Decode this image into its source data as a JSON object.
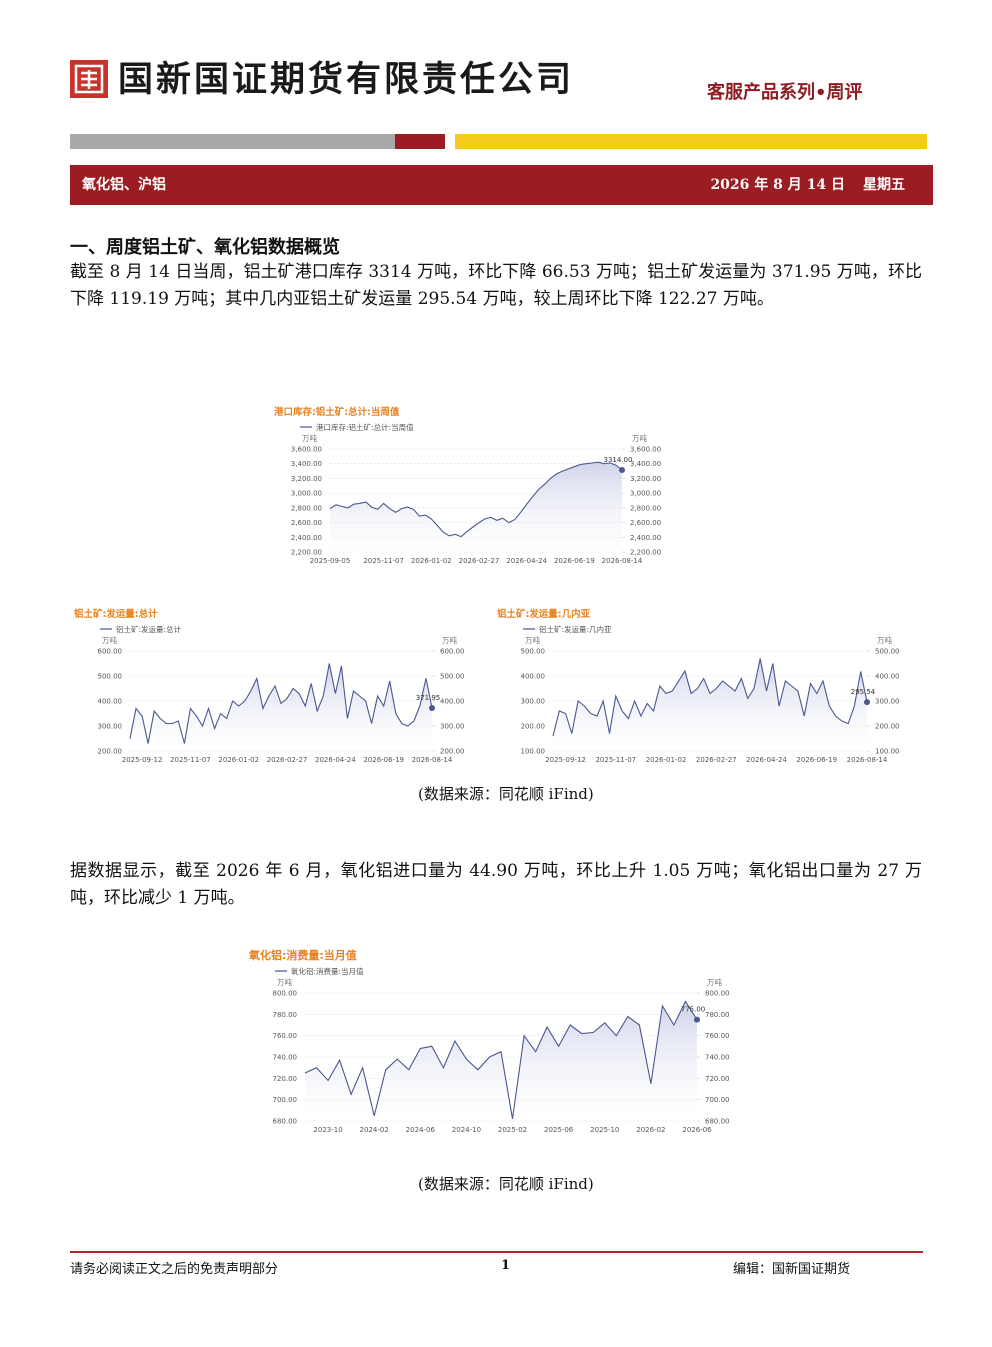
{
  "header": {
    "company": "国新国证期货有限责任公司",
    "series": "客服产品系列•周评"
  },
  "banner": {
    "topic": "氧化铝、沪铝",
    "date": "2026 年 8 月 14 日",
    "weekday": "星期五"
  },
  "section": {
    "heading": "一、周度铝土矿、氧化铝数据概览",
    "paragraphs": [
      "截至 8 月 14 日当周，铝土矿港口库存 3314 万吨，环比下降 66.53 万吨；铝土矿发运量为 371.95 万吨，环比下降 119.19 万吨；其中几内亚铝土矿发运量 295.54 万吨，较上周环比下降 122.27 万吨。",
      "据数据显示，截至 2026 年 6 月，氧化铝进口量为 44.90 万吨，环比上升 1.05 万吨；氧化铝出口量为 27 万吨，环比减少 1 万吨。"
    ],
    "sources": [
      "(数据来源：同花顺 iFind)",
      "(数据来源：同花顺 iFind)"
    ]
  },
  "footer": {
    "disclaimer": "请务必阅读正文之后的免责声明部分",
    "page": "1",
    "editor": "编辑：国新国证期货"
  },
  "chart_data": [
    {
      "type": "line",
      "title": "港口库存:铝土矿:总计:当周值",
      "y_unit": "万吨",
      "y2_unit": "万吨",
      "categories": [
        "2025-09-05",
        null,
        null,
        null,
        null,
        null,
        null,
        null,
        null,
        "2025-11-07",
        null,
        null,
        null,
        null,
        null,
        null,
        null,
        "2026-01-02",
        null,
        null,
        null,
        null,
        null,
        null,
        null,
        "2026-02-27",
        null,
        null,
        null,
        null,
        null,
        null,
        null,
        "2026-04-24",
        null,
        null,
        null,
        null,
        null,
        null,
        null,
        "2026-06-19",
        null,
        null,
        null,
        null,
        null,
        null,
        null,
        "2026-08-14"
      ],
      "series": [
        {
          "name": "港口库存:铝土矿:总计:当周值",
          "color": "#4a5790",
          "values": [
            2790,
            2840,
            2820,
            2800,
            2850,
            2860,
            2880,
            2810,
            2780,
            2860,
            2790,
            2740,
            2790,
            2810,
            2780,
            2690,
            2700,
            2650,
            2560,
            2470,
            2420,
            2440,
            2410,
            2480,
            2540,
            2600,
            2650,
            2670,
            2630,
            2660,
            2600,
            2640,
            2740,
            2850,
            2950,
            3050,
            3120,
            3200,
            3260,
            3300,
            3330,
            3360,
            3390,
            3400,
            3410,
            3420,
            3400,
            3410,
            3380,
            3314
          ],
          "value_labels": [
            null,
            null,
            null,
            null,
            null,
            null,
            null,
            null,
            null,
            null,
            null,
            null,
            null,
            null,
            null,
            null,
            null,
            null,
            null,
            null,
            null,
            null,
            null,
            null,
            null,
            null,
            null,
            null,
            null,
            null,
            null,
            null,
            null,
            null,
            null,
            null,
            null,
            null,
            null,
            null,
            null,
            null,
            null,
            null,
            null,
            null,
            null,
            null,
            null,
            "3314.00"
          ]
        }
      ],
      "ylim": [
        2200,
        3600
      ],
      "yticks": [
        {
          "value": 2200,
          "label": "2,200.00"
        },
        {
          "value": 2400,
          "label": "2,400.00"
        },
        {
          "value": 2600,
          "label": "2,600.00"
        },
        {
          "value": 2800,
          "label": "2,800.00"
        },
        {
          "value": 3000,
          "label": "3,000.00"
        },
        {
          "value": 3200,
          "label": "3,200.00"
        },
        {
          "value": 3400,
          "label": "3,400.00"
        },
        {
          "value": 3600,
          "label": "3,600.00"
        }
      ],
      "y2lim": [
        2200,
        3600
      ],
      "y2ticks": [
        {
          "value": 2200,
          "label": "2,200.00"
        },
        {
          "value": 2400,
          "label": "2,400.00"
        },
        {
          "value": 2600,
          "label": "2,600.00"
        },
        {
          "value": 2800,
          "label": "2,800.00"
        },
        {
          "value": 3000,
          "label": "3,000.00"
        },
        {
          "value": 3200,
          "label": "3,200.00"
        },
        {
          "value": 3400,
          "label": "3,400.00"
        },
        {
          "value": 3600,
          "label": "3,600.00"
        }
      ],
      "grid": true
    },
    {
      "type": "line",
      "title": "铝土矿:发运量:总计",
      "y_unit": "万吨",
      "y2_unit": "万吨",
      "categories": [
        null,
        null,
        "2025-09-12",
        null,
        null,
        null,
        null,
        null,
        null,
        null,
        "2025-11-07",
        null,
        null,
        null,
        null,
        null,
        null,
        null,
        "2026-01-02",
        null,
        null,
        null,
        null,
        null,
        null,
        null,
        "2026-02-27",
        null,
        null,
        null,
        null,
        null,
        null,
        null,
        "2026-04-24",
        null,
        null,
        null,
        null,
        null,
        null,
        null,
        "2026-06-19",
        null,
        null,
        null,
        null,
        null,
        null,
        null,
        "2026-08-14"
      ],
      "series": [
        {
          "name": "铝土矿:发运量:总计",
          "color": "#4a5790",
          "values": [
            250,
            370,
            340,
            230,
            360,
            330,
            310,
            310,
            320,
            230,
            370,
            340,
            300,
            370,
            290,
            350,
            330,
            400,
            380,
            400,
            440,
            490,
            370,
            420,
            460,
            390,
            410,
            450,
            430,
            380,
            470,
            360,
            420,
            550,
            430,
            540,
            330,
            440,
            420,
            400,
            310,
            420,
            380,
            480,
            350,
            310,
            300,
            320,
            380,
            491,
            371.95
          ],
          "value_labels": [
            null,
            null,
            null,
            null,
            null,
            null,
            null,
            null,
            null,
            null,
            null,
            null,
            null,
            null,
            null,
            null,
            null,
            null,
            null,
            null,
            null,
            null,
            null,
            null,
            null,
            null,
            null,
            null,
            null,
            null,
            null,
            null,
            null,
            null,
            null,
            null,
            null,
            null,
            null,
            null,
            null,
            null,
            null,
            null,
            null,
            null,
            null,
            null,
            null,
            null,
            "371.95"
          ]
        }
      ],
      "ylim": [
        200,
        600
      ],
      "yticks": [
        {
          "value": 200,
          "label": "200.00"
        },
        {
          "value": 300,
          "label": "300.00"
        },
        {
          "value": 400,
          "label": "400.00"
        },
        {
          "value": 500,
          "label": "500.00"
        },
        {
          "value": 600,
          "label": "600.00"
        }
      ],
      "y2lim": [
        200,
        600
      ],
      "y2ticks": [
        {
          "value": 200,
          "label": "200.00"
        },
        {
          "value": 300,
          "label": "300.00"
        },
        {
          "value": 400,
          "label": "400.00"
        },
        {
          "value": 500,
          "label": "500.00"
        },
        {
          "value": 600,
          "label": "600.00"
        }
      ],
      "grid": true
    },
    {
      "type": "line",
      "title": "铝土矿:发运量:几内亚",
      "y_unit": "万吨",
      "y2_unit": "万吨",
      "categories": [
        null,
        null,
        "2025-09-12",
        null,
        null,
        null,
        null,
        null,
        null,
        null,
        "2025-11-07",
        null,
        null,
        null,
        null,
        null,
        null,
        null,
        "2026-01-02",
        null,
        null,
        null,
        null,
        null,
        null,
        null,
        "2026-02-27",
        null,
        null,
        null,
        null,
        null,
        null,
        null,
        "2026-04-24",
        null,
        null,
        null,
        null,
        null,
        null,
        null,
        "2026-06-19",
        null,
        null,
        null,
        null,
        null,
        null,
        null,
        "2026-08-14"
      ],
      "series": [
        {
          "name": "铝土矿:发运量:几内亚",
          "color": "#4a5790",
          "values": [
            160,
            260,
            250,
            170,
            300,
            280,
            250,
            240,
            300,
            170,
            320,
            260,
            230,
            300,
            240,
            290,
            260,
            360,
            330,
            340,
            380,
            420,
            330,
            350,
            390,
            330,
            350,
            380,
            360,
            340,
            390,
            310,
            350,
            470,
            340,
            450,
            280,
            380,
            360,
            340,
            240,
            370,
            330,
            380,
            280,
            240,
            220,
            210,
            280,
            418,
            295.54
          ],
          "value_labels": [
            null,
            null,
            null,
            null,
            null,
            null,
            null,
            null,
            null,
            null,
            null,
            null,
            null,
            null,
            null,
            null,
            null,
            null,
            null,
            null,
            null,
            null,
            null,
            null,
            null,
            null,
            null,
            null,
            null,
            null,
            null,
            null,
            null,
            null,
            null,
            null,
            null,
            null,
            null,
            null,
            null,
            null,
            null,
            null,
            null,
            null,
            null,
            null,
            null,
            null,
            "295.54"
          ]
        }
      ],
      "ylim": [
        100,
        500
      ],
      "yticks": [
        {
          "value": 100,
          "label": "100.00"
        },
        {
          "value": 200,
          "label": "200.00"
        },
        {
          "value": 300,
          "label": "300.00"
        },
        {
          "value": 400,
          "label": "400.00"
        },
        {
          "value": 500,
          "label": "500.00"
        }
      ],
      "y2lim": [
        100,
        500
      ],
      "y2ticks": [
        {
          "value": 100,
          "label": "100.00"
        },
        {
          "value": 200,
          "label": "200.00"
        },
        {
          "value": 300,
          "label": "300.00"
        },
        {
          "value": 400,
          "label": "400.00"
        },
        {
          "value": 500,
          "label": "500.00"
        }
      ],
      "grid": true
    },
    {
      "type": "line",
      "title": "氧化铝:消费量:当月值",
      "y_unit": "万吨",
      "y2_unit": "万吨",
      "categories": [
        null,
        null,
        "2023-10",
        null,
        null,
        null,
        "2024-02",
        null,
        null,
        null,
        "2024-06",
        null,
        null,
        null,
        "2024-10",
        null,
        null,
        null,
        "2025-02",
        null,
        null,
        null,
        "2025-06",
        null,
        null,
        null,
        "2025-10",
        null,
        null,
        null,
        "2026-02",
        null,
        null,
        null,
        "2026-06"
      ],
      "series": [
        {
          "name": "氧化铝:消费量:当月值",
          "color": "#4a5790",
          "values": [
            725,
            730,
            718,
            737,
            705,
            730,
            685,
            728,
            738,
            728,
            748,
            750,
            730,
            755,
            738,
            728,
            740,
            745,
            682,
            760,
            745,
            768,
            750,
            770,
            762,
            763,
            772,
            760,
            778,
            770,
            715,
            788,
            770,
            792,
            775
          ],
          "value_labels": [
            null,
            null,
            null,
            null,
            null,
            null,
            null,
            null,
            null,
            null,
            null,
            null,
            null,
            null,
            null,
            null,
            null,
            null,
            null,
            null,
            null,
            null,
            null,
            null,
            null,
            null,
            null,
            null,
            null,
            null,
            null,
            null,
            null,
            null,
            "775.00"
          ]
        }
      ],
      "ylim": [
        680,
        800
      ],
      "yticks": [
        {
          "value": 680,
          "label": "680.00"
        },
        {
          "value": 700,
          "label": "700.00"
        },
        {
          "value": 720,
          "label": "720.00"
        },
        {
          "value": 740,
          "label": "740.00"
        },
        {
          "value": 760,
          "label": "760.00"
        },
        {
          "value": 780,
          "label": "780.00"
        },
        {
          "value": 800,
          "label": "800.00"
        }
      ],
      "y2lim": [
        680,
        800
      ],
      "y2ticks": [
        {
          "value": 680,
          "label": "680.00"
        },
        {
          "value": 700,
          "label": "700.00"
        },
        {
          "value": 720,
          "label": "720.00"
        },
        {
          "value": 740,
          "label": "740.00"
        },
        {
          "value": 760,
          "label": "760.00"
        },
        {
          "value": 780,
          "label": "780.00"
        },
        {
          "value": 800,
          "label": "800.00"
        }
      ],
      "grid": true
    }
  ]
}
